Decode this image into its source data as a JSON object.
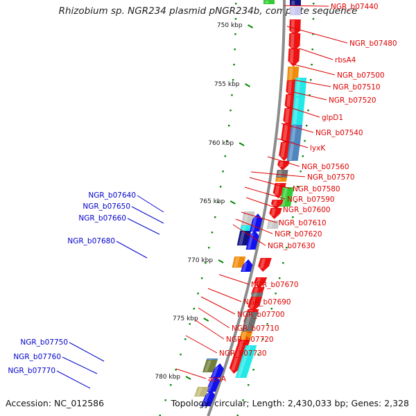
{
  "title": "Rhizobium sp. NGR234 plasmid pNGR234b, complete sequence",
  "accession": "Accession: NC_012586",
  "summary": "Topology: circular; Length: 2,430,033 bp; Genes: 2,328",
  "scale_labels": [
    "750 kbp",
    "755 kbp",
    "760 kbp",
    "765 kbp",
    "770 kbp",
    "775 kbp",
    "780 kbp"
  ],
  "colors": {
    "red": "#ee1111",
    "blue": "#1111ee",
    "navy": "#121280",
    "cyan": "#22e8e8",
    "steel": "#4f86c0",
    "orange": "#f08c0c",
    "green": "#33cc33",
    "gray": "#707070",
    "lightgray": "#c8c8c8",
    "olive": "#6f7f3a",
    "khaki": "#bfb874",
    "lavender": "#c8c8f0",
    "backbone": "#8c8c8c",
    "tick": "#008800",
    "label_red": "#dd0000",
    "label_blue": "#0000cc"
  },
  "right_labels": [
    "NGR_b07440",
    "NGR_b07480",
    "rbsA4",
    "NGR_b07500",
    "NGR_b07510",
    "NGR_b07520",
    "glpD1",
    "NGR_b07540",
    "lyxK",
    "NGR_b07560",
    "NGR_b07570",
    "NGR_b07580",
    "NGR_b07590",
    "NGR_b07600",
    "NGR_b07610",
    "NGR_b07620",
    "NGR_b07630",
    "NGR_b07670",
    "NGR_b07690",
    "NGR_b07700",
    "NGR_b07710",
    "NGR_b07720",
    "NGR_b07730",
    "acnA"
  ],
  "left_labels": [
    "NGR_b07640",
    "NGR_b07650",
    "NGR_b07660",
    "NGR_b07680",
    "NGR_b07750",
    "NGR_b07760",
    "NGR_b07770"
  ]
}
